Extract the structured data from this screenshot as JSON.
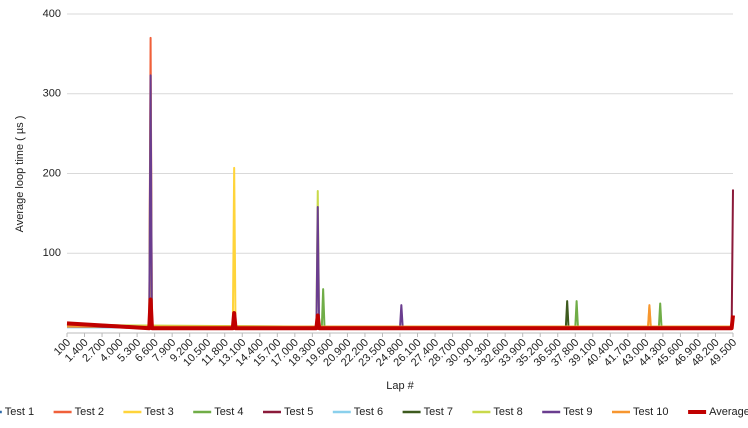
{
  "chart_data": {
    "type": "line",
    "y_label": "Average loop time ( µs )",
    "x_label": "Lap #",
    "xlim": [
      100,
      49500
    ],
    "ylim": [
      0,
      400
    ],
    "yticks": [
      100,
      200,
      300,
      400
    ],
    "grid": true,
    "legend": "bottom",
    "xticks": [
      100,
      {
        "value": 1400,
        "label": "1.400"
      },
      {
        "value": 2700,
        "label": "2.700"
      },
      {
        "value": 4000,
        "label": "4.000"
      },
      {
        "value": 5300,
        "label": "5.300"
      },
      {
        "value": 6600,
        "label": "6.600"
      },
      {
        "value": 7900,
        "label": "7.900"
      },
      {
        "value": 9200,
        "label": "9.200"
      },
      {
        "value": 10500,
        "label": "10.500"
      },
      {
        "value": 11800,
        "label": "11.800"
      },
      {
        "value": 13100,
        "label": "13.100"
      },
      {
        "value": 14400,
        "label": "14.400"
      },
      {
        "value": 15700,
        "label": "15.700"
      },
      {
        "value": 17000,
        "label": "17.000"
      },
      {
        "value": 18300,
        "label": "18.300"
      },
      {
        "value": 19600,
        "label": "19.600"
      },
      {
        "value": 20900,
        "label": "20.900"
      },
      {
        "value": 22200,
        "label": "22.200"
      },
      {
        "value": 23500,
        "label": "23.500"
      },
      {
        "value": 24800,
        "label": "24.800"
      },
      {
        "value": 26100,
        "label": "26.100"
      },
      {
        "value": 27400,
        "label": "27.400"
      },
      {
        "value": 28700,
        "label": "28.700"
      },
      {
        "value": 30000,
        "label": "30.000"
      },
      {
        "value": 31300,
        "label": "31.300"
      },
      {
        "value": 32600,
        "label": "32.600"
      },
      {
        "value": 33900,
        "label": "33.900"
      },
      {
        "value": 35200,
        "label": "35.200"
      },
      {
        "value": 36500,
        "label": "36.500"
      },
      {
        "value": 37800,
        "label": "37.800"
      },
      {
        "value": 39100,
        "label": "39.100"
      },
      {
        "value": 40400,
        "label": "40.400"
      },
      {
        "value": 41700,
        "label": "41.700"
      },
      {
        "value": 43000,
        "label": "43.000"
      },
      {
        "value": 44300,
        "label": "44.300"
      },
      {
        "value": 45600,
        "label": "45.600"
      },
      {
        "value": 46900,
        "label": "46.900"
      },
      {
        "value": 48200,
        "label": "48.200"
      },
      {
        "value": 49500,
        "label": "49.500"
      }
    ],
    "series": [
      {
        "name": "Test 1",
        "color": "#2e6aa8",
        "width": 2,
        "x": [
          100,
          5000,
          10000,
          20000,
          30000,
          40000,
          49500
        ],
        "values": [
          10,
          8,
          7,
          7,
          7,
          7,
          7
        ]
      },
      {
        "name": "Test 2",
        "color": "#f0603a",
        "width": 2,
        "x": [
          100,
          6200,
          6300,
          6400,
          49500
        ],
        "values": [
          12,
          8,
          370,
          8,
          7
        ]
      },
      {
        "name": "Test 3",
        "color": "#ffd43a",
        "width": 2,
        "x": [
          100,
          6200,
          6300,
          6400,
          12400,
          12500,
          12600,
          43200,
          43300,
          43400,
          49500
        ],
        "values": [
          9,
          8,
          300,
          8,
          8,
          207,
          8,
          8,
          33,
          8,
          8
        ]
      },
      {
        "name": "Test 4",
        "color": "#70ad47",
        "width": 2,
        "x": [
          100,
          19000,
          19100,
          19200,
          37800,
          37900,
          38000,
          44000,
          44100,
          44200,
          49500
        ],
        "values": [
          8,
          7,
          55,
          7,
          7,
          40,
          7,
          7,
          37,
          7,
          7
        ]
      },
      {
        "name": "Test 5",
        "color": "#8b1a3a",
        "width": 2,
        "x": [
          100,
          49400,
          49500
        ],
        "values": [
          8,
          7,
          180
        ]
      },
      {
        "name": "Test 6",
        "color": "#8ad0ec",
        "width": 2,
        "x": [
          100,
          49500
        ],
        "values": [
          7,
          6
        ]
      },
      {
        "name": "Test 7",
        "color": "#3d5a1e",
        "width": 2,
        "x": [
          100,
          37100,
          37200,
          37300,
          49500
        ],
        "values": [
          9,
          7,
          40,
          7,
          7
        ]
      },
      {
        "name": "Test 8",
        "color": "#c9d94a",
        "width": 2,
        "x": [
          100,
          18600,
          18700,
          18800,
          49500
        ],
        "values": [
          10,
          8,
          178,
          8,
          8
        ]
      },
      {
        "name": "Test 9",
        "color": "#6a3d8f",
        "width": 2,
        "x": [
          100,
          6200,
          6300,
          6400,
          18600,
          18700,
          18800,
          24800,
          24900,
          25000,
          49500
        ],
        "values": [
          8,
          7,
          323,
          7,
          7,
          158,
          7,
          7,
          35,
          7,
          7
        ]
      },
      {
        "name": "Test 10",
        "color": "#f7962f",
        "width": 2,
        "x": [
          100,
          43200,
          43300,
          43400,
          49500
        ],
        "values": [
          8,
          8,
          35,
          8,
          8
        ]
      },
      {
        "name": "Average",
        "color": "#c00000",
        "width": 4,
        "x": [
          100,
          6200,
          6300,
          6400,
          12400,
          12500,
          12600,
          18600,
          18700,
          18800,
          49400,
          49500
        ],
        "values": [
          12,
          6,
          42,
          6,
          6,
          25,
          6,
          6,
          22,
          6,
          6,
          22
        ]
      }
    ]
  }
}
